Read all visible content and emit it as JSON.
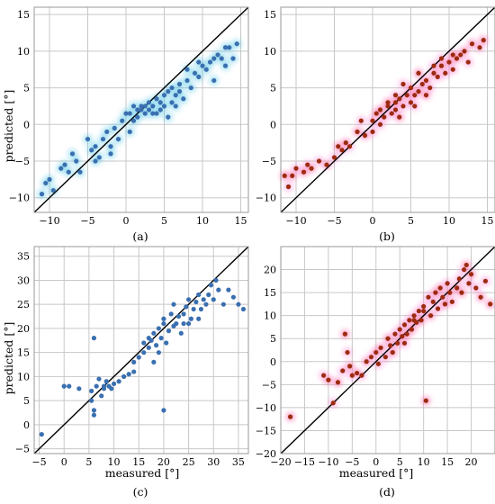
{
  "figure": {
    "panel_labels": [
      "(a)",
      "(b)",
      "(c)",
      "(d)"
    ],
    "xlabel": "measured [°]",
    "ylabel": "predicted [°]"
  },
  "colors": {
    "blue_point": "#3a6fb0",
    "blue_glow": "#58c7e6",
    "red_point": "#9c2b10",
    "red_glow": "#ff5a5a",
    "pink_glow": "#ff80d0",
    "identity_line": "#000000",
    "grid": "#c8c8c8"
  },
  "chart_data": [
    {
      "type": "scatter",
      "panel": "(a)",
      "xlabel": "",
      "ylabel": "predicted [°]",
      "xlim": [
        -12,
        16
      ],
      "ylim": [
        -12,
        16
      ],
      "xticks": [
        -10,
        -5,
        0,
        5,
        10,
        15
      ],
      "yticks": [
        -10,
        -5,
        0,
        5,
        10,
        15
      ],
      "grid": true,
      "identity_line": true,
      "points": [
        [
          -11,
          -9.5
        ],
        [
          -10.5,
          -8
        ],
        [
          -10,
          -7.5
        ],
        [
          -9.5,
          -9
        ],
        [
          -8.5,
          -6
        ],
        [
          -8,
          -5.5
        ],
        [
          -7.5,
          -6.5
        ],
        [
          -7,
          -4
        ],
        [
          -6.5,
          -5
        ],
        [
          -6,
          -6.5
        ],
        [
          -5,
          -2
        ],
        [
          -4.5,
          -3.5
        ],
        [
          -4,
          -3
        ],
        [
          -3.5,
          -4.5
        ],
        [
          -3,
          -2
        ],
        [
          -2.5,
          -1
        ],
        [
          -2,
          -3
        ],
        [
          -1.5,
          -0.5
        ],
        [
          -1,
          -2
        ],
        [
          -0.5,
          0.5
        ],
        [
          0,
          1.5
        ],
        [
          0.5,
          -1
        ],
        [
          1,
          0.5
        ],
        [
          1.5,
          2
        ],
        [
          1.5,
          1
        ],
        [
          2,
          2.5
        ],
        [
          2.5,
          1.5
        ],
        [
          3,
          2
        ],
        [
          3,
          3
        ],
        [
          3.5,
          2.5
        ],
        [
          4,
          1.5
        ],
        [
          4,
          3.5
        ],
        [
          4.5,
          2
        ],
        [
          5,
          2.5
        ],
        [
          5,
          4
        ],
        [
          5.5,
          1
        ],
        [
          6,
          3
        ],
        [
          6,
          5
        ],
        [
          6.5,
          4
        ],
        [
          7,
          5.5
        ],
        [
          7.5,
          3.5
        ],
        [
          8,
          6
        ],
        [
          8.5,
          5
        ],
        [
          9,
          7
        ],
        [
          9.5,
          6.5
        ],
        [
          10,
          8
        ],
        [
          10.5,
          7.5
        ],
        [
          11,
          8.5
        ],
        [
          11.5,
          6
        ],
        [
          12,
          9.5
        ],
        [
          12.5,
          9
        ],
        [
          13,
          8
        ],
        [
          13.5,
          10.5
        ],
        [
          14,
          9
        ],
        [
          14.5,
          11
        ],
        [
          13,
          10.5
        ],
        [
          11.5,
          9
        ],
        [
          9.5,
          8.5
        ],
        [
          8,
          7.5
        ],
        [
          7,
          4.5
        ],
        [
          2,
          2
        ],
        [
          3.5,
          1.5
        ],
        [
          4.5,
          3
        ],
        [
          0.5,
          1.5
        ],
        [
          -2,
          -4
        ],
        [
          -4,
          -5
        ],
        [
          5.5,
          4.5
        ],
        [
          6.5,
          2.5
        ],
        [
          1,
          2.5
        ],
        [
          2.5,
          2.5
        ]
      ]
    },
    {
      "type": "scatter",
      "panel": "(b)",
      "xlabel": "",
      "ylabel": "",
      "xlim": [
        -12,
        16
      ],
      "ylim": [
        -12,
        16
      ],
      "xticks": [
        -10,
        -5,
        0,
        5,
        10,
        15
      ],
      "yticks": [
        -10,
        -5,
        0,
        5,
        10,
        15
      ],
      "grid": true,
      "identity_line": true,
      "points": [
        [
          -11.5,
          -7
        ],
        [
          -11,
          -8.5
        ],
        [
          -10.5,
          -7
        ],
        [
          -10,
          -6
        ],
        [
          -9,
          -6.5
        ],
        [
          -8.5,
          -5.5
        ],
        [
          -8,
          -6
        ],
        [
          -7,
          -5
        ],
        [
          -6,
          -5.5
        ],
        [
          -5,
          -4.5
        ],
        [
          -4.5,
          -3
        ],
        [
          -4,
          -3.5
        ],
        [
          -3.5,
          -2.5
        ],
        [
          -3,
          -3
        ],
        [
          -2,
          -1
        ],
        [
          -1.5,
          0.5
        ],
        [
          -1,
          -1.5
        ],
        [
          0,
          0.5
        ],
        [
          0.5,
          1.5
        ],
        [
          1,
          0
        ],
        [
          1,
          2
        ],
        [
          1.5,
          1
        ],
        [
          2,
          2.5
        ],
        [
          2.5,
          1.5
        ],
        [
          3,
          3
        ],
        [
          3,
          2
        ],
        [
          3.5,
          3.5
        ],
        [
          4,
          2.5
        ],
        [
          4.5,
          4
        ],
        [
          5,
          3
        ],
        [
          5,
          5
        ],
        [
          5.5,
          4
        ],
        [
          6,
          4.5
        ],
        [
          6.5,
          5.5
        ],
        [
          7,
          6
        ],
        [
          7.5,
          5
        ],
        [
          8,
          7
        ],
        [
          8.5,
          6.5
        ],
        [
          9,
          8
        ],
        [
          9.5,
          7
        ],
        [
          10,
          8.5
        ],
        [
          10.5,
          7.5
        ],
        [
          11,
          9
        ],
        [
          11.5,
          9.5
        ],
        [
          12,
          10
        ],
        [
          12.5,
          8.5
        ],
        [
          13,
          11
        ],
        [
          14,
          10.5
        ],
        [
          14.5,
          11.5
        ],
        [
          9,
          9
        ],
        [
          7,
          4
        ],
        [
          3,
          4
        ],
        [
          2,
          3
        ],
        [
          4,
          5.5
        ],
        [
          6,
          7
        ],
        [
          8,
          8
        ],
        [
          10.5,
          9.5
        ],
        [
          5.5,
          2.5
        ],
        [
          3.5,
          1
        ],
        [
          0,
          -1
        ]
      ]
    },
    {
      "type": "scatter",
      "panel": "(c)",
      "xlabel": "measured [°]",
      "ylabel": "predicted [°]",
      "xlim": [
        -6,
        37
      ],
      "ylim": [
        -6,
        37
      ],
      "xticks": [
        -5,
        0,
        5,
        10,
        15,
        20,
        25,
        30,
        35
      ],
      "yticks": [
        -5,
        0,
        5,
        10,
        15,
        20,
        25,
        30,
        35
      ],
      "grid": true,
      "identity_line": true,
      "points": [
        [
          -4.5,
          -2
        ],
        [
          0,
          8
        ],
        [
          1,
          8
        ],
        [
          3,
          7.5
        ],
        [
          5.5,
          7
        ],
        [
          5.5,
          5
        ],
        [
          6,
          3
        ],
        [
          6,
          2
        ],
        [
          6.5,
          8
        ],
        [
          7,
          9.5
        ],
        [
          7.5,
          6
        ],
        [
          8,
          7.5
        ],
        [
          8.5,
          9
        ],
        [
          9,
          8
        ],
        [
          9.5,
          7.5
        ],
        [
          10,
          8.5
        ],
        [
          11,
          9
        ],
        [
          12,
          10
        ],
        [
          13,
          10.5
        ],
        [
          14,
          11
        ],
        [
          15,
          14
        ],
        [
          16,
          15
        ],
        [
          17,
          16
        ],
        [
          17.5,
          17.5
        ],
        [
          18,
          19
        ],
        [
          18.5,
          16.5
        ],
        [
          19,
          20
        ],
        [
          19.5,
          18
        ],
        [
          20,
          21
        ],
        [
          20,
          22
        ],
        [
          20.5,
          17
        ],
        [
          21,
          19.5
        ],
        [
          21.5,
          23
        ],
        [
          22,
          20.5
        ],
        [
          22.5,
          21
        ],
        [
          23,
          22.5
        ],
        [
          23.5,
          19
        ],
        [
          24,
          23
        ],
        [
          24.5,
          24.5
        ],
        [
          25,
          21
        ],
        [
          25.5,
          22
        ],
        [
          26,
          24
        ],
        [
          26.5,
          25.5
        ],
        [
          27,
          22
        ],
        [
          27.5,
          24
        ],
        [
          28,
          26
        ],
        [
          28.5,
          25
        ],
        [
          29,
          27
        ],
        [
          29.5,
          29
        ],
        [
          30,
          26
        ],
        [
          30.5,
          30
        ],
        [
          31,
          28
        ],
        [
          32,
          25
        ],
        [
          33,
          28
        ],
        [
          34,
          26.5
        ],
        [
          35,
          25
        ],
        [
          36,
          24
        ],
        [
          20,
          3
        ],
        [
          12,
          10
        ],
        [
          6,
          18
        ],
        [
          19,
          15
        ],
        [
          22,
          25
        ],
        [
          24,
          21
        ],
        [
          18,
          13
        ],
        [
          17,
          18
        ],
        [
          25,
          26
        ],
        [
          27,
          27
        ],
        [
          16,
          17
        ],
        [
          14,
          13
        ],
        [
          8,
          8
        ]
      ]
    },
    {
      "type": "scatter",
      "panel": "(d)",
      "xlabel": "measured [°]",
      "ylabel": "",
      "xlim": [
        -20,
        25
      ],
      "ylim": [
        -20,
        25
      ],
      "xticks": [
        -20,
        -15,
        -10,
        -5,
        0,
        5,
        10,
        15,
        20
      ],
      "yticks": [
        -20,
        -15,
        -10,
        -5,
        0,
        5,
        10,
        15,
        20
      ],
      "grid": true,
      "identity_line": true,
      "points": [
        [
          -18,
          -12
        ],
        [
          -11,
          -3
        ],
        [
          -10,
          -4
        ],
        [
          -9,
          -9
        ],
        [
          -8,
          -4.5
        ],
        [
          -7,
          -2
        ],
        [
          -6.5,
          6
        ],
        [
          -6,
          2
        ],
        [
          -5.5,
          -1
        ],
        [
          -5,
          -3
        ],
        [
          -4,
          -2.5
        ],
        [
          -3,
          -3
        ],
        [
          -2,
          0
        ],
        [
          -1,
          1
        ],
        [
          0,
          2
        ],
        [
          0.5,
          -0.5
        ],
        [
          1,
          3
        ],
        [
          2,
          1
        ],
        [
          2.5,
          5
        ],
        [
          3,
          3.5
        ],
        [
          3.5,
          2
        ],
        [
          4,
          6
        ],
        [
          4.5,
          4
        ],
        [
          5,
          7
        ],
        [
          5.5,
          5.5
        ],
        [
          6,
          8
        ],
        [
          6.5,
          6
        ],
        [
          7,
          9
        ],
        [
          7.5,
          7
        ],
        [
          8,
          10
        ],
        [
          8.5,
          8.5
        ],
        [
          9,
          11
        ],
        [
          9.5,
          9
        ],
        [
          10,
          12
        ],
        [
          10.5,
          -8.5
        ],
        [
          11,
          14
        ],
        [
          11.5,
          10
        ],
        [
          12,
          13
        ],
        [
          12.5,
          15
        ],
        [
          13,
          11.5
        ],
        [
          13.5,
          16
        ],
        [
          14,
          14
        ],
        [
          14.5,
          12.5
        ],
        [
          15,
          17
        ],
        [
          15.5,
          15
        ],
        [
          16,
          13
        ],
        [
          17,
          16
        ],
        [
          17.5,
          18
        ],
        [
          18,
          15
        ],
        [
          18.5,
          20
        ],
        [
          19,
          21
        ],
        [
          19.5,
          17
        ],
        [
          20,
          19
        ],
        [
          21,
          16
        ],
        [
          22,
          14
        ],
        [
          23,
          17.5
        ],
        [
          24,
          12.5
        ],
        [
          10,
          11
        ],
        [
          8,
          9
        ],
        [
          6,
          4
        ]
      ]
    }
  ]
}
